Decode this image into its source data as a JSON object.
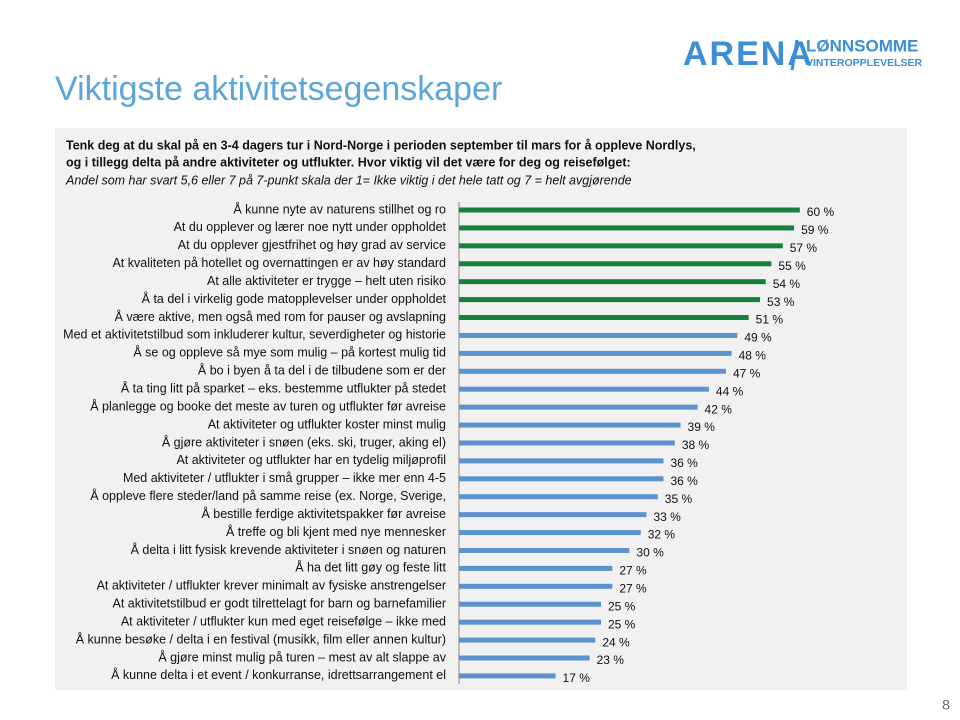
{
  "header": {
    "logo": "ARENA",
    "logo_line1": "LØNNSOMME",
    "logo_line2": "VINTEROPPLEVELSER",
    "page_number": "8"
  },
  "chart_data": {
    "type": "hbar",
    "title": "Viktigste aktivitetsegenskaper",
    "question": [
      "Tenk deg at du skal på en 3-4 dagers tur i Nord-Norge i perioden september til mars for å oppleve Nordlys,",
      "og i tillegg delta på andre aktiviteter og utflukter. Hvor viktig vil det være for deg og reisefølget:"
    ],
    "subtitle": "Andel som har svart 5,6 eller 7 på 7-punkt skala der 1= Ikke viktig i det hele tatt og 7 = helt avgjørende",
    "categories": [
      "Å kunne nyte av naturens stillhet og ro",
      "At du opplever og lærer noe nytt under oppholdet",
      "At du opplever gjestfrihet og høy grad av service",
      "At kvaliteten på hotellet og overnattingen er av høy standard",
      "At alle aktiviteter er trygge – helt uten risiko",
      "Å ta del i virkelig gode matopplevelser under oppholdet",
      "Å være aktive, men også med rom for pauser og avslapning",
      "Med et aktivitetstilbud som inkluderer kultur, severdigheter og historie",
      "Å se og oppleve så mye som mulig – på kortest mulig tid",
      "Å bo i byen å ta del i de tilbudene som er der",
      "Å ta ting litt på sparket – eks. bestemme utflukter på stedet",
      "Å planlegge og booke det meste av turen og utflukter før avreise",
      "At aktiviteter og utflukter koster minst mulig",
      "Å gjøre aktiviteter i snøen (eks. ski, truger, aking el)",
      "At aktiviteter og utflukter har en tydelig miljøprofil",
      "Med aktiviteter / utflukter i små grupper – ikke mer enn 4-5",
      "Å oppleve flere steder/land på samme reise (ex. Norge, Sverige,",
      "Å bestille ferdige aktivitetspakker før avreise",
      "Å treffe og bli kjent med nye mennesker",
      "Å delta i litt fysisk krevende aktiviteter i snøen og naturen",
      "Å ha det litt gøy og feste litt",
      "At aktiviteter / utflukter krever minimalt av fysiske anstrengelser",
      "At aktivitetstilbud er godt tilrettelagt for barn og barnefamilier",
      "At aktiviteter / utflukter kun med eget reisefølge – ikke med",
      "Å kunne besøke / delta i en festival (musikk, film eller annen kultur)",
      "Å gjøre minst mulig på turen – mest av alt slappe av",
      "Å kunne delta i et event / konkurranse, idrettsarrangement el"
    ],
    "values": [
      60,
      59,
      57,
      55,
      54,
      53,
      51,
      49,
      48,
      47,
      44,
      42,
      39,
      38,
      36,
      36,
      35,
      33,
      32,
      30,
      27,
      27,
      25,
      25,
      24,
      23,
      17
    ],
    "value_labels": [
      "60 %",
      "59 %",
      "57 %",
      "55 %",
      "54 %",
      "53 %",
      "51 %",
      "49 %",
      "48 %",
      "47 %",
      "44 %",
      "42 %",
      "39 %",
      "38 %",
      "36 %",
      "36 %",
      "35 %",
      "33 %",
      "32 %",
      "30 %",
      "27 %",
      "27 %",
      "25 %",
      "25 %",
      "24 %",
      "23 %",
      "17 %"
    ],
    "colors": [
      "#17803d",
      "#17803d",
      "#17803d",
      "#17803d",
      "#17803d",
      "#17803d",
      "#17803d",
      "#5b93cf",
      "#5b93cf",
      "#5b93cf",
      "#5b93cf",
      "#5b93cf",
      "#5b93cf",
      "#5b93cf",
      "#5b93cf",
      "#5b93cf",
      "#5b93cf",
      "#5b93cf",
      "#5b93cf",
      "#5b93cf",
      "#5b93cf",
      "#5b93cf",
      "#5b93cf",
      "#5b93cf",
      "#5b93cf",
      "#5b93cf",
      "#5b93cf"
    ]
  }
}
